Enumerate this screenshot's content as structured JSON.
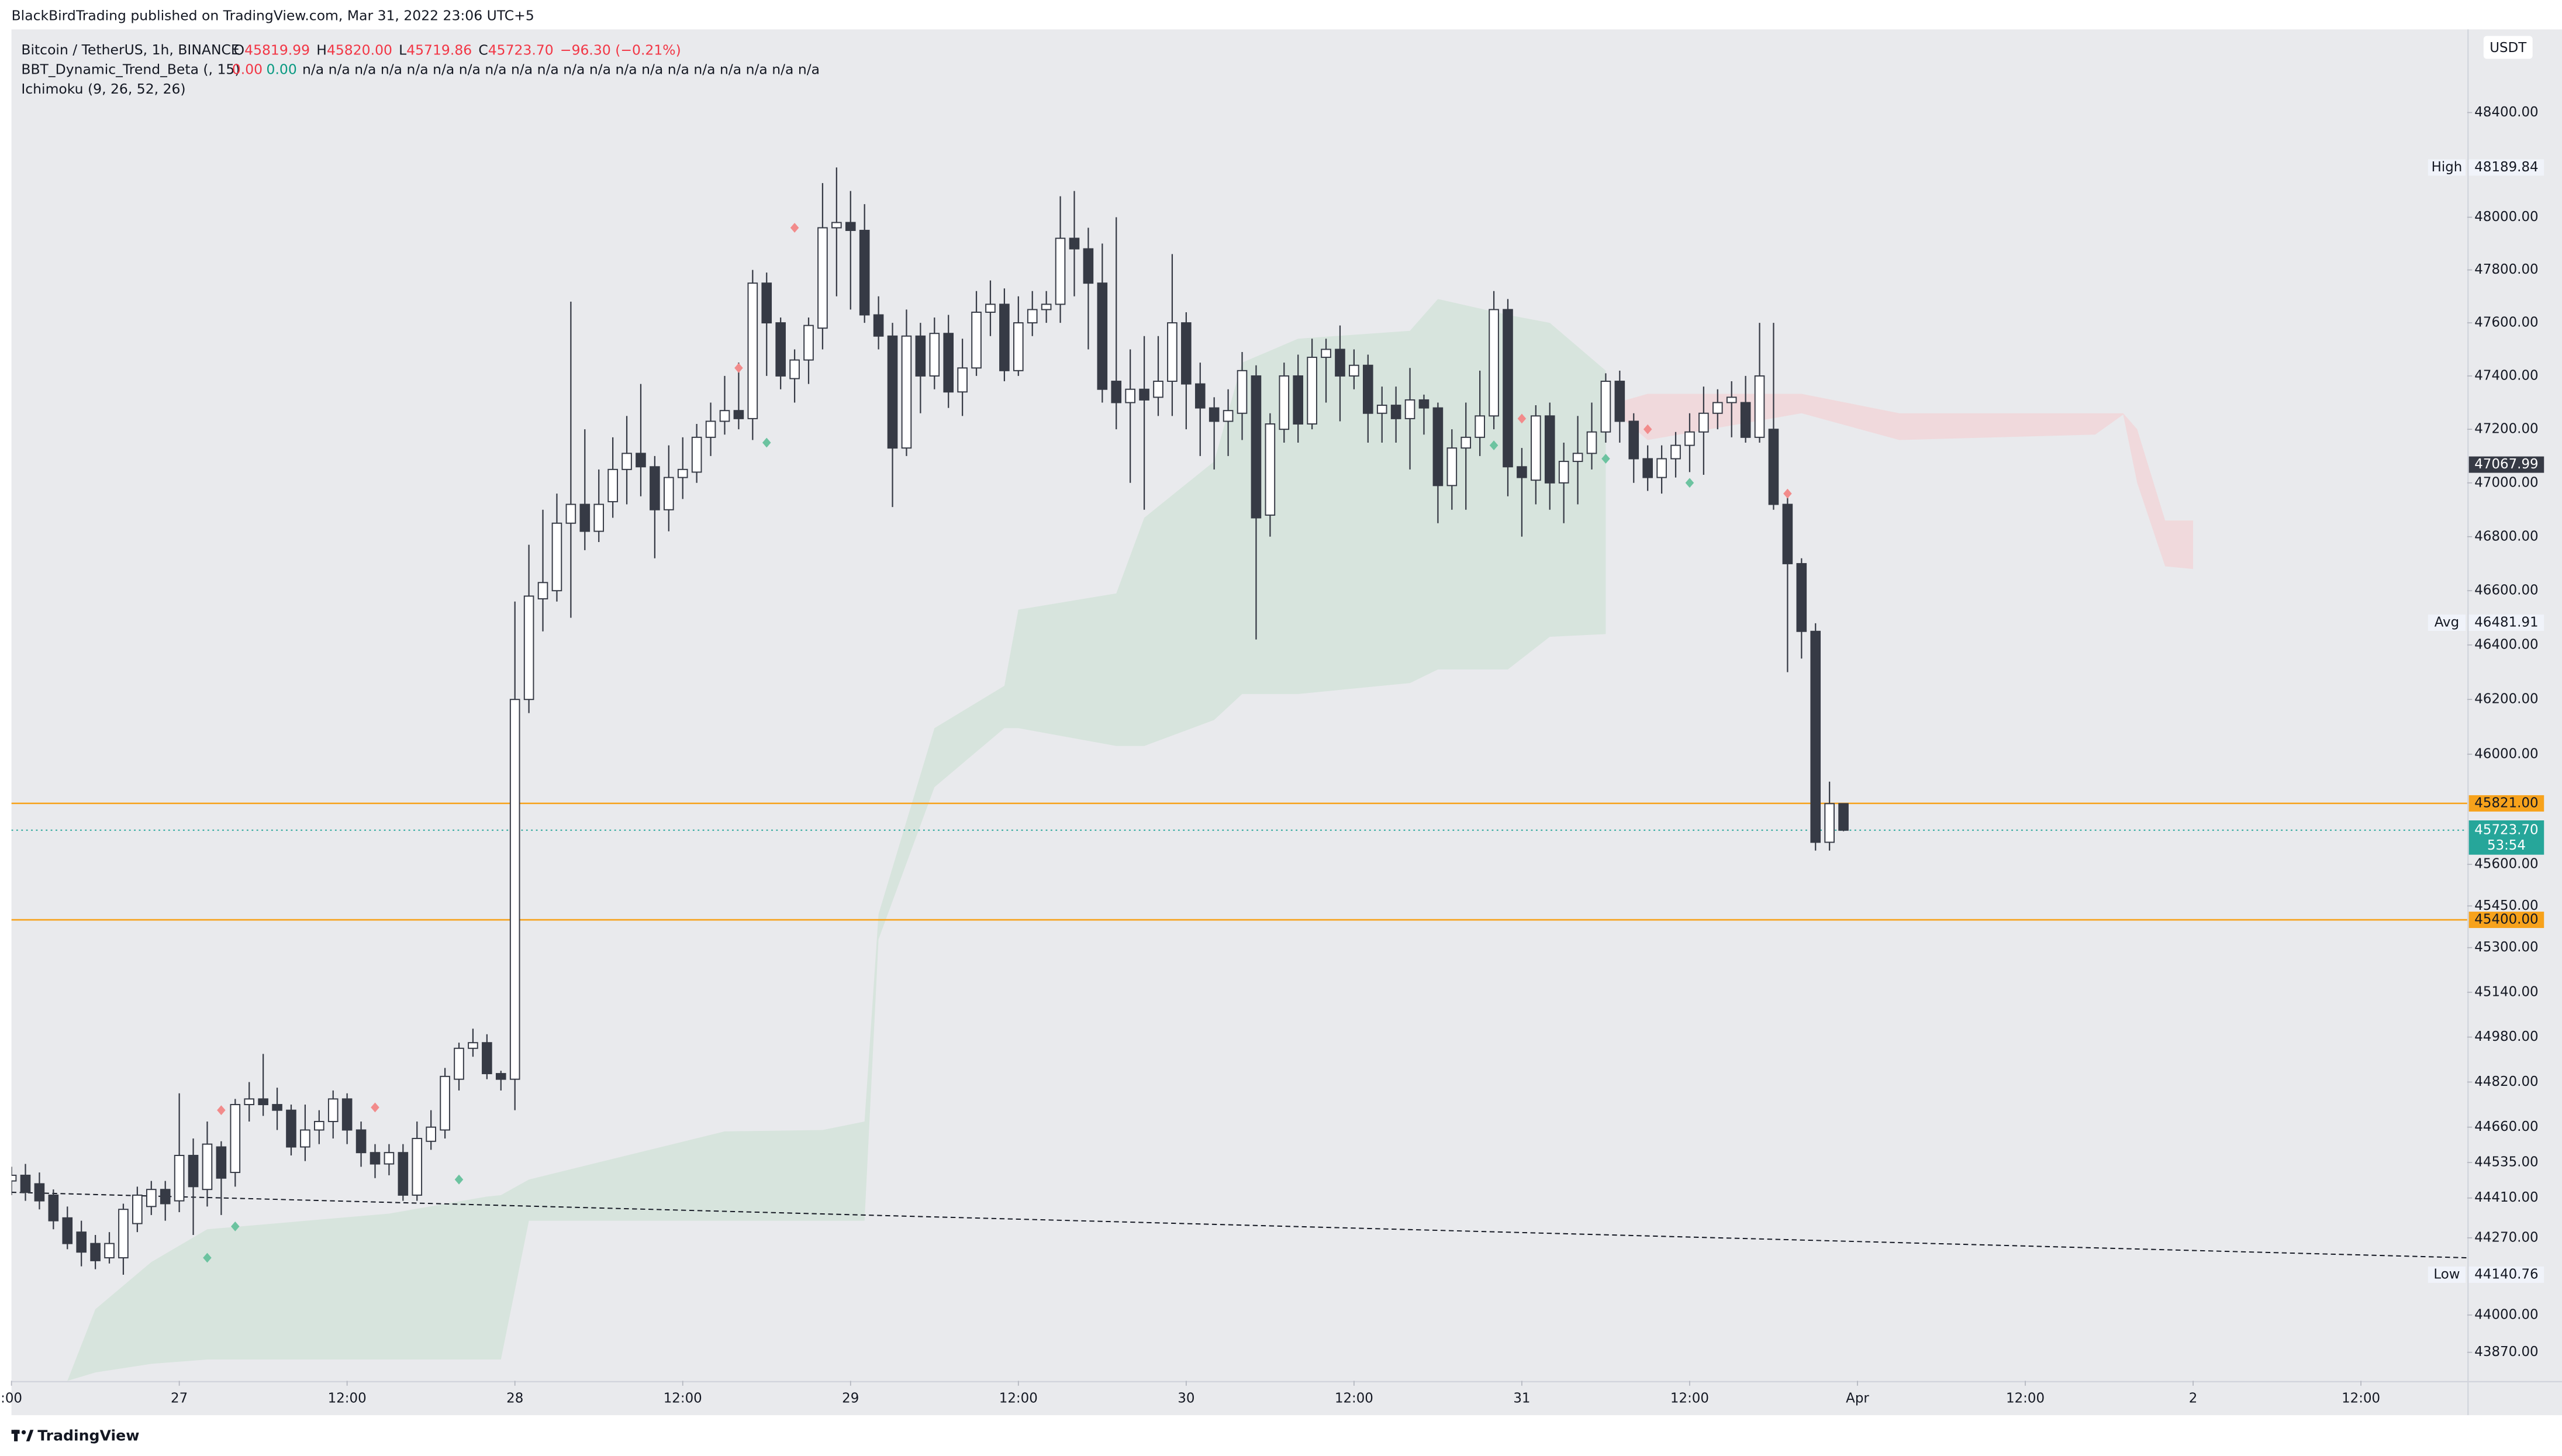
{
  "page": {
    "publisher": "BlackBirdTrading published on TradingView.com, Mar 31, 2022 23:06 UTC+5",
    "brand": "TradingView"
  },
  "chart_data": {
    "type": "candlestick",
    "symbol": "Bitcoin / TetherUS, 1h, BINANCE",
    "ohlc_legend": [
      {
        "name": "O",
        "value": "45819.99"
      },
      {
        "name": "H",
        "value": "45820.00"
      },
      {
        "name": "L",
        "value": "45719.86"
      },
      {
        "name": "C",
        "value": "45723.70"
      }
    ],
    "change": "−96.30 (−0.21%)",
    "indicator_legend": {
      "name": "BBT_Dynamic_Trend_Beta (, 15)",
      "sell": "0.00",
      "buy": "0.00",
      "rest": "n/a n/a n/a n/a n/a n/a n/a n/a n/a n/a n/a n/a n/a n/a n/a n/a n/a n/a n/a n/a"
    },
    "ichimoku_legend": "Ichimoku (9, 26, 52, 26)",
    "currency": "USDT",
    "log_scale": true,
    "grid": false,
    "up_color": "#ffffff",
    "down_color": "#363a45",
    "ylim": [
      43771,
      48720
    ],
    "xlim": [
      0,
      175.6
    ],
    "yticks": [
      {
        "value": 48400,
        "label": "48400.00"
      },
      {
        "value": 48000,
        "label": "48000.00"
      },
      {
        "value": 47800,
        "label": "47800.00"
      },
      {
        "value": 47600,
        "label": "47600.00"
      },
      {
        "value": 47400,
        "label": "47400.00"
      },
      {
        "value": 47200,
        "label": "47200.00"
      },
      {
        "value": 47000,
        "label": "47000.00"
      },
      {
        "value": 46800,
        "label": "46800.00"
      },
      {
        "value": 46600,
        "label": "46600.00"
      },
      {
        "value": 46400,
        "label": "46400.00"
      },
      {
        "value": 46200,
        "label": "46200.00"
      },
      {
        "value": 46000,
        "label": "46000.00"
      },
      {
        "value": 45600,
        "label": "45600.00"
      },
      {
        "value": 45450,
        "label": "45450.00"
      },
      {
        "value": 45300,
        "label": "45300.00"
      },
      {
        "value": 45140,
        "label": "45140.00"
      },
      {
        "value": 44980,
        "label": "44980.00"
      },
      {
        "value": 44820,
        "label": "44820.00"
      },
      {
        "value": 44660,
        "label": "44660.00"
      },
      {
        "value": 44535,
        "label": "44535.00"
      },
      {
        "value": 44410,
        "label": "44410.00"
      },
      {
        "value": 44270,
        "label": "44270.00"
      },
      {
        "value": 44000,
        "label": "44000.00"
      },
      {
        "value": 43870,
        "label": "43870.00"
      }
    ],
    "xticks": [
      {
        "value": 0,
        "label": ":00"
      },
      {
        "value": 12,
        "label": "27"
      },
      {
        "value": 24,
        "label": "12:00"
      },
      {
        "value": 36,
        "label": "28"
      },
      {
        "value": 48,
        "label": "12:00"
      },
      {
        "value": 60,
        "label": "29"
      },
      {
        "value": 72,
        "label": "12:00"
      },
      {
        "value": 84,
        "label": "30"
      },
      {
        "value": 96,
        "label": "12:00"
      },
      {
        "value": 108,
        "label": "31"
      },
      {
        "value": 120,
        "label": "12:00"
      },
      {
        "value": 132,
        "label": "Apr"
      },
      {
        "value": 144,
        "label": "12:00"
      },
      {
        "value": 156,
        "label": "2"
      },
      {
        "value": 168,
        "label": "12:00"
      }
    ],
    "candles": {
      "open": [
        44470,
        44490,
        44460,
        44420,
        44340,
        44290,
        44250,
        44200,
        44200,
        44320,
        44380,
        44440,
        44400,
        44560,
        44440,
        44590,
        44500,
        44740,
        44760,
        44740,
        44720,
        44590,
        44650,
        44680,
        44760,
        44650,
        44570,
        44530,
        44570,
        44420,
        44610,
        44650,
        44830,
        44940,
        44960,
        44850,
        44830,
        46200,
        46570,
        46600,
        46850,
        46920,
        46820,
        46930,
        47050,
        47110,
        47060,
        46900,
        47020,
        47040,
        47170,
        47230,
        47270,
        47240,
        47750,
        47600,
        47390,
        47460,
        47580,
        47960,
        47980,
        47950,
        47630,
        47550,
        47130,
        47550,
        47400,
        47560,
        47340,
        47430,
        47640,
        47670,
        47420,
        47600,
        47650,
        47670,
        47920,
        47880,
        47750,
        47380,
        47300,
        47350,
        47320,
        47380,
        47600,
        47370,
        47280,
        47230,
        47260,
        47400,
        46880,
        47200,
        47400,
        47220,
        47470,
        47500,
        47400,
        47440,
        47260,
        47290,
        47240,
        47310,
        47280,
        46990,
        47130,
        47170,
        47250,
        47650,
        47060,
        47010,
        47250,
        47000,
        47080,
        47110,
        47190,
        47380,
        47230,
        47090,
        47020,
        47090,
        47140,
        47190,
        47260,
        47300,
        47300,
        47170,
        47200,
        46920,
        46700,
        46450,
        45680,
        45819.99
      ],
      "high": [
        44520,
        44530,
        44500,
        44440,
        44380,
        44330,
        44280,
        44290,
        44390,
        44450,
        44470,
        44470,
        44780,
        44620,
        44680,
        44610,
        44760,
        44820,
        44920,
        44800,
        44740,
        44740,
        44720,
        44790,
        44780,
        44680,
        44600,
        44600,
        44600,
        44680,
        44720,
        44870,
        44960,
        45010,
        44990,
        44860,
        46560,
        46770,
        46900,
        46960,
        47680,
        47200,
        47050,
        47170,
        47250,
        47370,
        47100,
        47140,
        47170,
        47220,
        47300,
        47400,
        47450,
        47800,
        47790,
        47620,
        47500,
        47620,
        48130,
        48189.84,
        48100,
        48050,
        47700,
        47600,
        47650,
        47600,
        47620,
        47630,
        47540,
        47720,
        47760,
        47730,
        47700,
        47720,
        47720,
        48080,
        48100,
        47960,
        47900,
        48000,
        47500,
        47550,
        47550,
        47860,
        47640,
        47450,
        47320,
        47350,
        47490,
        47440,
        47260,
        47450,
        47480,
        47540,
        47540,
        47590,
        47500,
        47480,
        47360,
        47360,
        47430,
        47330,
        47300,
        47200,
        47300,
        47420,
        47720,
        47690,
        47130,
        47290,
        47300,
        47150,
        47250,
        47300,
        47410,
        47420,
        47260,
        47140,
        47140,
        47190,
        47260,
        47360,
        47350,
        47380,
        47400,
        47600,
        47600,
        46960,
        46720,
        46480,
        45900,
        45820
      ],
      "low": [
        44420,
        44400,
        44370,
        44300,
        44230,
        44170,
        44160,
        44180,
        44140.76,
        44290,
        44350,
        44330,
        44360,
        44280,
        44380,
        44350,
        44450,
        44680,
        44700,
        44650,
        44560,
        44540,
        44600,
        44620,
        44600,
        44520,
        44480,
        44490,
        44400,
        44400,
        44580,
        44620,
        44790,
        44910,
        44830,
        44790,
        44720,
        46150,
        46450,
        46560,
        46500,
        46750,
        46780,
        46870,
        46920,
        46950,
        46720,
        46820,
        46940,
        47000,
        47100,
        47180,
        47200,
        47160,
        47400,
        47350,
        47300,
        47370,
        47500,
        47700,
        47650,
        47600,
        47500,
        46910,
        47100,
        47260,
        47350,
        47280,
        47250,
        47400,
        47550,
        47380,
        47400,
        47550,
        47600,
        47600,
        47700,
        47500,
        47300,
        47200,
        47000,
        46900,
        47250,
        47250,
        47200,
        47100,
        47050,
        47100,
        47160,
        46420,
        46800,
        47150,
        47150,
        47200,
        47300,
        47230,
        47350,
        47150,
        47150,
        47150,
        47050,
        47180,
        46850,
        46900,
        46900,
        47100,
        47200,
        46950,
        46800,
        46920,
        46900,
        46850,
        46920,
        47050,
        47150,
        47150,
        47000,
        46970,
        46960,
        47020,
        47040,
        47030,
        47200,
        47170,
        47150,
        47150,
        46900,
        46300,
        46350,
        45650,
        45650,
        45719.86
      ],
      "close": [
        44490,
        44430,
        44400,
        44330,
        44250,
        44220,
        44190,
        44250,
        44370,
        44420,
        44440,
        44390,
        44560,
        44450,
        44600,
        44480,
        44740,
        44760,
        44740,
        44720,
        44590,
        44650,
        44680,
        44760,
        44650,
        44570,
        44530,
        44570,
        44420,
        44620,
        44660,
        44840,
        44940,
        44960,
        44850,
        44830,
        46200,
        46580,
        46630,
        46850,
        46920,
        46820,
        46920,
        47050,
        47110,
        47060,
        46900,
        47020,
        47050,
        47170,
        47230,
        47270,
        47240,
        47750,
        47600,
        47400,
        47460,
        47590,
        47960,
        47980,
        47950,
        47630,
        47550,
        47130,
        47550,
        47400,
        47560,
        47340,
        47430,
        47640,
        47670,
        47420,
        47600,
        47650,
        47670,
        47920,
        47880,
        47750,
        47350,
        47300,
        47350,
        47310,
        47380,
        47600,
        47370,
        47280,
        47230,
        47270,
        47420,
        46870,
        47220,
        47400,
        47220,
        47470,
        47500,
        47400,
        47440,
        47260,
        47290,
        47240,
        47310,
        47280,
        46990,
        47130,
        47170,
        47250,
        47650,
        47060,
        47020,
        47250,
        47000,
        47080,
        47110,
        47190,
        47380,
        47230,
        47090,
        47020,
        47090,
        47140,
        47190,
        47260,
        47300,
        47320,
        47170,
        47400,
        46920,
        46700,
        46450,
        45680,
        45820,
        45723.7
      ]
    },
    "ichimoku": {
      "bull_cloud": {
        "color": "#d3e3d9",
        "x": [
          4,
          6,
          10,
          14,
          27,
          34,
          35,
          37,
          44,
          51,
          58,
          61,
          62,
          66,
          71,
          72,
          79,
          81,
          86,
          88,
          92,
          100,
          102,
          107,
          110,
          114
        ],
        "upper": [
          43771,
          44020,
          44185,
          44300,
          44355,
          44415,
          44420,
          44475,
          44560,
          44645,
          44650,
          44680,
          45420,
          46095,
          46250,
          46530,
          46590,
          46870,
          47080,
          47450,
          47540,
          47570,
          47690,
          47630,
          47600,
          47420
        ],
        "lower": [
          43771,
          43800,
          43830,
          43845,
          43845,
          43845,
          43845,
          44330,
          44330,
          44330,
          44330,
          44330,
          45330,
          45880,
          46095,
          46095,
          46030,
          46030,
          46125,
          46220,
          46220,
          46260,
          46310,
          46310,
          46430,
          46440
        ]
      },
      "bear_cloud": {
        "color": "#f1d6d8",
        "x": [
          115,
          117,
          128,
          135,
          149,
          151,
          152,
          154,
          156
        ],
        "upper": [
          47303,
          47333,
          47333,
          47260,
          47260,
          47260,
          47200,
          46860,
          46860
        ],
        "lower": [
          47250,
          47160,
          47260,
          47160,
          47180,
          47255,
          47000,
          46690,
          46680
        ]
      }
    },
    "signals_sell": {
      "color": "#f28b8b",
      "x": [
        15,
        26,
        52,
        56,
        108,
        117,
        127
      ],
      "y": [
        44720,
        44730,
        47430,
        47960,
        47240,
        47200,
        46960
      ]
    },
    "signals_buy": {
      "color": "#6cc3a0",
      "x": [
        14,
        16,
        32,
        54,
        106,
        114,
        120
      ],
      "y": [
        44200,
        44310,
        44475,
        47150,
        47140,
        47090,
        47000
      ]
    },
    "trendline": {
      "color": "#131722",
      "x": [
        0,
        175.6
      ],
      "y": [
        44430,
        44200
      ]
    },
    "stat_markers": [
      {
        "tag": "High",
        "value": 48189.84
      },
      {
        "tag": "Avg",
        "value": 46481.91
      },
      {
        "tag": "Low",
        "value": 44140.76
      }
    ],
    "indicator_price": {
      "value": 47067.99,
      "color": "#363a45"
    },
    "hlines": [
      {
        "value": 45821,
        "label": "45821.00",
        "color": "#f7a21b"
      },
      {
        "value": 45400,
        "label": "45400.00",
        "color": "#f7a21b"
      }
    ],
    "last_price": {
      "value": 45723.7,
      "label": "45723.70",
      "countdown": "53:54",
      "color": "#26a69a"
    }
  }
}
